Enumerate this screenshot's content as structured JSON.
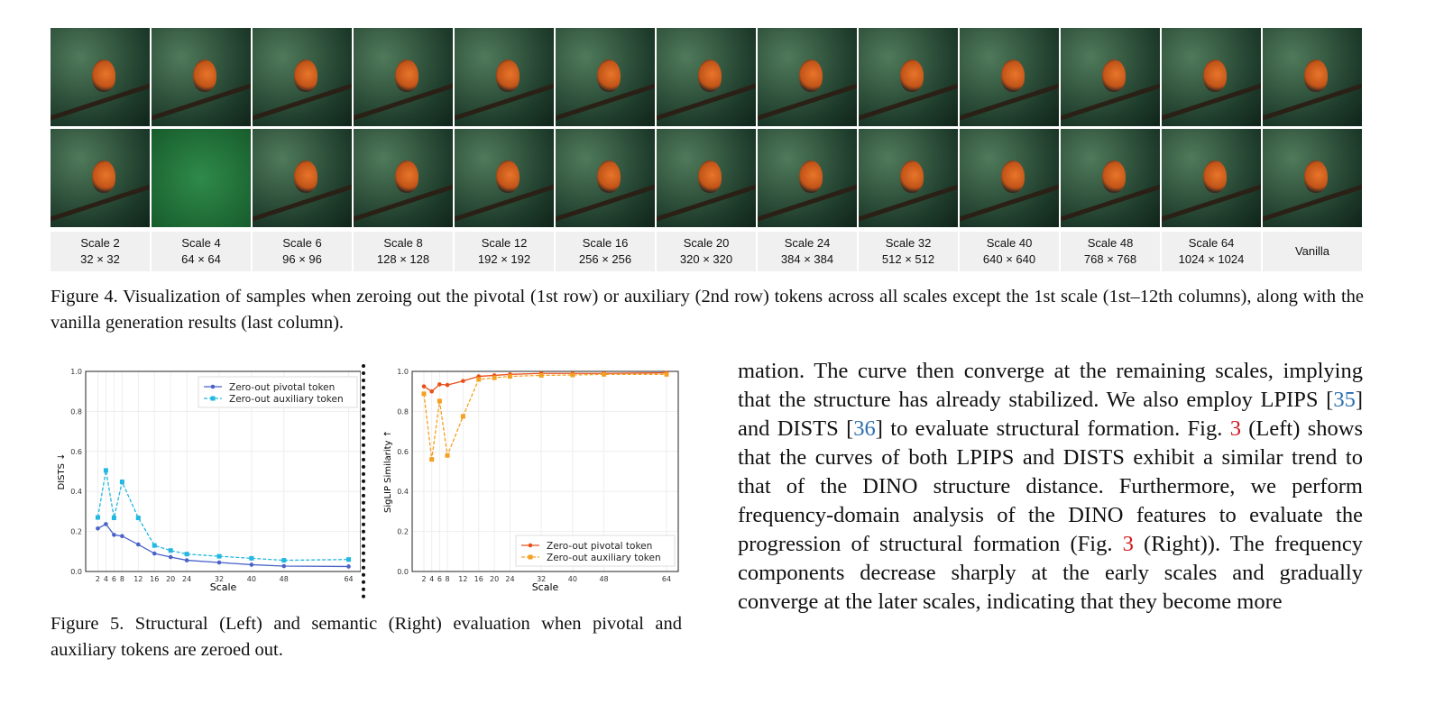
{
  "figure4": {
    "columns": [
      {
        "scale": "Scale 2",
        "res": "32 × 32"
      },
      {
        "scale": "Scale 4",
        "res": "64 × 64"
      },
      {
        "scale": "Scale 6",
        "res": "96 × 96"
      },
      {
        "scale": "Scale 8",
        "res": "128 × 128"
      },
      {
        "scale": "Scale 12",
        "res": "192 × 192"
      },
      {
        "scale": "Scale 16",
        "res": "256 × 256"
      },
      {
        "scale": "Scale 20",
        "res": "320 × 320"
      },
      {
        "scale": "Scale 24",
        "res": "384 × 384"
      },
      {
        "scale": "Scale 32",
        "res": "512 × 512"
      },
      {
        "scale": "Scale 40",
        "res": "640 × 640"
      },
      {
        "scale": "Scale 48",
        "res": "768 × 768"
      },
      {
        "scale": "Scale 64",
        "res": "1024 × 1024"
      },
      {
        "scale": "Vanilla",
        "res": ""
      }
    ],
    "caption": "Figure 4. Visualization of samples when zeroing out the pivotal (1st row) or auxiliary (2nd row) tokens across all scales except the 1st scale (1st–12th columns), along with the vanilla generation results (last column)."
  },
  "figure5": {
    "caption": "Figure 5. Structural (Left) and semantic (Right) evaluation when pivotal and auxiliary tokens are zeroed out."
  },
  "chart_data": [
    {
      "type": "line",
      "xlabel": "Scale",
      "ylabel": "DISTS ↓",
      "xlim": [
        -1,
        67
      ],
      "ylim": [
        0,
        1
      ],
      "grid": true,
      "legend": "top-right",
      "x": [
        2,
        4,
        6,
        8,
        12,
        16,
        20,
        24,
        32,
        40,
        48,
        64
      ],
      "xticks": [
        "2",
        "4",
        "6",
        "8",
        "12",
        "16",
        "20",
        "24",
        "32",
        "40",
        "48",
        "64"
      ],
      "yticks": [
        "0.0",
        "0.2",
        "0.4",
        "0.6",
        "0.8",
        "1.0"
      ],
      "series": [
        {
          "name": "Zero-out pivotal token",
          "color": "#4a63c8",
          "style": "solid",
          "marker": "circle",
          "values": [
            0.215,
            0.237,
            0.183,
            0.177,
            0.135,
            0.09,
            0.072,
            0.056,
            0.045,
            0.034,
            0.027,
            0.025
          ]
        },
        {
          "name": "Zero-out auxiliary token",
          "color": "#22b8e0",
          "style": "dashed",
          "marker": "square",
          "values": [
            0.27,
            0.505,
            0.268,
            0.448,
            0.268,
            0.13,
            0.105,
            0.087,
            0.076,
            0.066,
            0.056,
            0.06
          ]
        }
      ]
    },
    {
      "type": "line",
      "xlabel": "Scale",
      "ylabel": "SigLIP Similarity ↑",
      "xlim": [
        -1,
        67
      ],
      "ylim": [
        0,
        1
      ],
      "grid": true,
      "legend": "bottom-right",
      "x": [
        2,
        4,
        6,
        8,
        12,
        16,
        20,
        24,
        32,
        40,
        48,
        64
      ],
      "xticks": [
        "2",
        "4",
        "6",
        "8",
        "12",
        "16",
        "20",
        "24",
        "32",
        "40",
        "48",
        "64"
      ],
      "yticks": [
        "0.0",
        "0.2",
        "0.4",
        "0.6",
        "0.8",
        "1.0"
      ],
      "series": [
        {
          "name": "Zero-out pivotal token",
          "color": "#e8501a",
          "style": "solid",
          "marker": "circle",
          "values": [
            0.925,
            0.9,
            0.935,
            0.932,
            0.952,
            0.975,
            0.98,
            0.985,
            0.99,
            0.99,
            0.99,
            0.993
          ]
        },
        {
          "name": "Zero-out auxiliary token",
          "color": "#f5a020",
          "style": "dashed",
          "marker": "square",
          "values": [
            0.888,
            0.56,
            0.852,
            0.58,
            0.775,
            0.96,
            0.968,
            0.975,
            0.98,
            0.982,
            0.985,
            0.985
          ]
        }
      ]
    }
  ],
  "body": {
    "t1": "mation. The curve then converge at the remaining scales, implying that the structure has already stabilized. We also employ LPIPS [",
    "r1": "35",
    "t2": "] and DISTS [",
    "r2": "36",
    "t3": "] to evaluate structural formation. Fig. ",
    "f1": "3",
    "t4": " (Left) shows that the curves of both LPIPS and DISTS exhibit a similar trend to that of the DINO structure distance. Furthermore, we perform frequency-domain analysis of the DINO features to evaluate the progression of structural formation (Fig. ",
    "f2": "3",
    "t5": " (Right)). The frequency components decrease sharply at the early scales and gradually converge at the later scales, indicating that they become more"
  }
}
